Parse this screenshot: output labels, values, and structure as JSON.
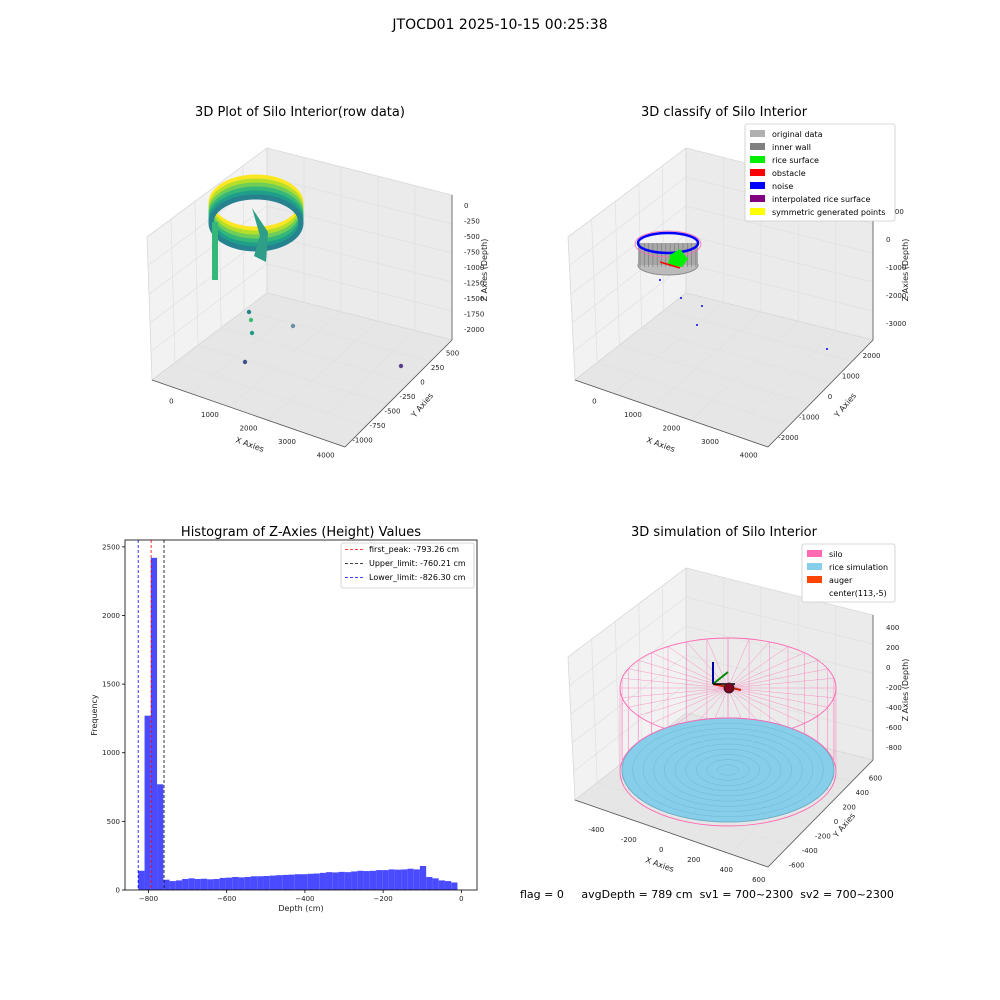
{
  "figure": {
    "title": "JTOCD01 2025-10-15 00:25:38",
    "status": {
      "flag": "flag = 0",
      "avg_depth": "avgDepth = 789 cm",
      "sv1": "sv1 = 700~2300",
      "sv2": "sv2 = 700~2300"
    }
  },
  "chart_data": [
    {
      "type": "scatter",
      "panel": "top-left",
      "title": "3D Plot of Silo Interior(row data)",
      "xlabel": "X Axies",
      "ylabel": "Y Axies",
      "zlabel": "Z Axies (Depth)",
      "xticks": [
        "0",
        "1000",
        "2000",
        "3000",
        "4000"
      ],
      "yticks": [
        "-1000",
        "-750",
        "-500",
        "-250",
        "0",
        "250",
        "500"
      ],
      "zticks": [
        "0",
        "-250",
        "-500",
        "-750",
        "-1000",
        "-1250",
        "-1500",
        "-1750",
        "-2000"
      ],
      "colormap": "viridis",
      "grid": true
    },
    {
      "type": "scatter",
      "panel": "top-right",
      "title": "3D classify of Silo Interior",
      "xlabel": "X Axies",
      "ylabel": "Y Axies",
      "zlabel": "Z Axies (Depth)",
      "xticks": [
        "0",
        "1000",
        "2000",
        "3000",
        "4000"
      ],
      "yticks": [
        "-2000",
        "-1000",
        "0",
        "1000",
        "2000"
      ],
      "zticks": [
        "1000",
        "0",
        "-1000",
        "-2000",
        "-3000"
      ],
      "legend_position": "top-right",
      "legend": [
        {
          "label": "original data",
          "color": "#b0b0b0"
        },
        {
          "label": "inner wall",
          "color": "#808080"
        },
        {
          "label": "rice surface",
          "color": "#00ee00"
        },
        {
          "label": "obstacle",
          "color": "#ff0000"
        },
        {
          "label": "noise",
          "color": "#0000ff"
        },
        {
          "label": "interpolated rice surface",
          "color": "#800080"
        },
        {
          "label": "symmetric generated points",
          "color": "#ffff00"
        }
      ],
      "grid": true
    },
    {
      "type": "bar",
      "panel": "bottom-left",
      "title": "Histogram of Z-Axies (Height) Values",
      "xlabel": "Depth (cm)",
      "ylabel": "Frequency",
      "xlim": [
        -860,
        40
      ],
      "ylim": [
        0,
        2550
      ],
      "xticks": [
        -800,
        -600,
        -400,
        -200,
        0
      ],
      "yticks": [
        0,
        500,
        1000,
        1500,
        2000,
        2500
      ],
      "bar_color": "#4a4aff",
      "bin_width": 16,
      "bin_start": -826,
      "values": [
        140,
        1270,
        2420,
        770,
        75,
        65,
        70,
        80,
        85,
        80,
        82,
        78,
        80,
        88,
        90,
        95,
        92,
        95,
        100,
        100,
        102,
        105,
        108,
        110,
        112,
        115,
        115,
        118,
        120,
        125,
        130,
        128,
        132,
        130,
        135,
        140,
        138,
        140,
        145,
        145,
        150,
        148,
        150,
        155,
        150,
        175,
        95,
        85,
        70,
        65,
        55
      ],
      "reference_lines": [
        {
          "label": "first_peak: -793.26 cm",
          "value": -793.26,
          "color": "#ff0000"
        },
        {
          "label": "Upper_limit: -760.21 cm",
          "value": -760.21,
          "color": "#000000"
        },
        {
          "label": "Lower_limit: -826.30 cm",
          "value": -826.3,
          "color": "#0000ff"
        }
      ],
      "legend_position": "top-right"
    },
    {
      "type": "scatter",
      "panel": "bottom-right",
      "title": "3D simulation of Silo Interior",
      "xlabel": "X Axies",
      "ylabel": "Y Axies",
      "zlabel": "Z Axies (Depth)",
      "xticks": [
        "-400",
        "-200",
        "0",
        "200",
        "400",
        "600"
      ],
      "yticks": [
        "-600",
        "-400",
        "-200",
        "0",
        "200",
        "400",
        "600"
      ],
      "zticks": [
        "400",
        "200",
        "0",
        "-200",
        "-400",
        "-600",
        "-800"
      ],
      "legend_position": "top-right",
      "legend": [
        {
          "label": "silo",
          "color": "#ff69b4"
        },
        {
          "label": "rice simulation",
          "color": "#87ceeb"
        },
        {
          "label": "auger",
          "color": "#ff4500"
        },
        {
          "label": "center(113,-5)",
          "color": ""
        }
      ],
      "grid": true
    }
  ]
}
